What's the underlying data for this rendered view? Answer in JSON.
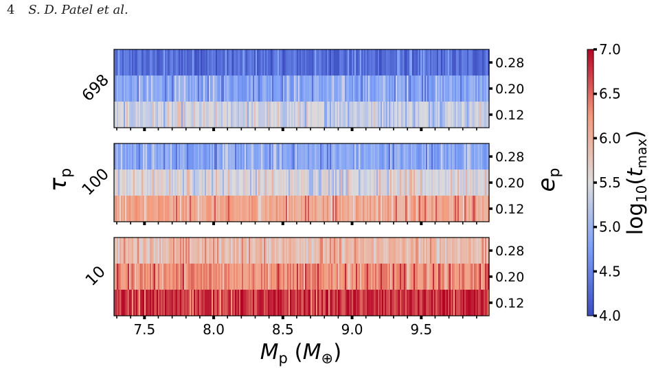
{
  "header": {
    "page_number": "4",
    "authors": "S. D. Patel et al."
  },
  "chart_data": {
    "type": "heatmap",
    "title": "",
    "xlabel": "M_p (M_⊕)",
    "xlim": [
      7.28,
      9.99
    ],
    "x_ticks": [
      "7.5",
      "8.0",
      "8.5",
      "9.0",
      "9.5"
    ],
    "x_tick_values": [
      7.5,
      8.0,
      8.5,
      9.0,
      9.5
    ],
    "ylabel_left": "τ_p",
    "ylabel_right": "e_p",
    "e_p_values": [
      "0.28",
      "0.20",
      "0.12"
    ],
    "colorbar": {
      "label": "log10(t_max)",
      "colormap": "coolwarm",
      "range": [
        4.0,
        7.0
      ],
      "ticks": [
        "7.0",
        "6.5",
        "6.0",
        "5.5",
        "5.0",
        "4.5",
        "4.0"
      ]
    },
    "panels": [
      {
        "tau_p": "698",
        "mean_log10_tmax": {
          "0.28": 4.3,
          "0.20": 4.85,
          "0.12": 5.35
        }
      },
      {
        "tau_p": "100",
        "mean_log10_tmax": {
          "0.28": 4.85,
          "0.20": 5.5,
          "0.12": 6.1
        }
      },
      {
        "tau_p": "10",
        "mean_log10_tmax": {
          "0.28": 5.9,
          "0.20": 6.3,
          "0.12": 6.75
        }
      }
    ]
  }
}
